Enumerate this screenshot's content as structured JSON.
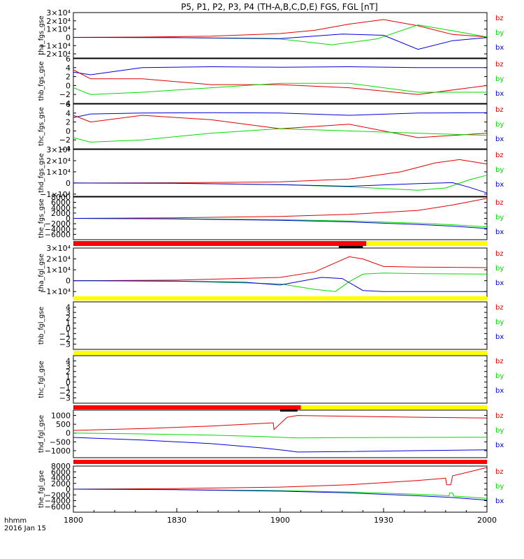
{
  "title": "P5, P1, P2, P3, P4 (TH-A,B,C,D,E) FGS, FGL [nT]",
  "footer": {
    "line1": "hhmm",
    "line2": "2016 Jan 15"
  },
  "colors": {
    "bz": "#e00000",
    "by": "#00dd00",
    "bx": "#0000dd",
    "bar_red": "#ff0000",
    "bar_yellow": "#ffff00",
    "bar_black": "#000000"
  },
  "chart_data": {
    "type": "line",
    "x_axis": {
      "ticks": [
        "1800",
        "1830",
        "1900",
        "1930",
        "2000"
      ],
      "range_minutes": [
        0,
        120
      ]
    },
    "panels": [
      {
        "ylabel": "tha_fgs_gse",
        "ylim": [
          -25000,
          30000
        ],
        "yticks": [
          {
            "v": 30000,
            "label": "3×10⁴"
          },
          {
            "v": 20000,
            "label": "2×10⁴"
          },
          {
            "v": 10000,
            "label": "1×10⁴"
          },
          {
            "v": 0,
            "label": "0"
          },
          {
            "v": -10000,
            "label": "−1×10⁴"
          },
          {
            "v": -20000,
            "label": "−2×10⁴"
          }
        ],
        "legend": [
          "bz",
          "by",
          "bx"
        ],
        "series": [
          {
            "name": "bz",
            "x": [
              0,
              20,
              40,
              60,
              70,
              80,
              90,
              100,
              110,
              120
            ],
            "y": [
              0,
              400,
              1500,
              4600,
              8500,
              16000,
              21500,
              14000,
              3500,
              500
            ]
          },
          {
            "name": "by",
            "x": [
              0,
              30,
              60,
              75,
              88,
              100,
              110,
              120
            ],
            "y": [
              0,
              -300,
              -2000,
              -9000,
              -2000,
              15000,
              8000,
              500
            ]
          },
          {
            "name": "bx",
            "x": [
              0,
              30,
              60,
              78,
              90,
              100,
              110,
              120
            ],
            "y": [
              0,
              -400,
              -1500,
              4000,
              2500,
              -14500,
              -4000,
              -300
            ]
          }
        ]
      },
      {
        "ylabel": "thb_fgs_gse",
        "ylim": [
          -4,
          6
        ],
        "yticks": [
          {
            "v": 6,
            "label": "6"
          },
          {
            "v": 4,
            "label": "4"
          },
          {
            "v": 2,
            "label": "2"
          },
          {
            "v": 0,
            "label": "0"
          },
          {
            "v": -2,
            "label": "−2"
          },
          {
            "v": -4,
            "label": "−4"
          }
        ],
        "legend": [
          "bz",
          "by",
          "bx"
        ],
        "series": [
          {
            "name": "bx",
            "x": [
              0,
              5,
              20,
              40,
              60,
              80,
              100,
              120
            ],
            "y": [
              3.0,
              2.4,
              4.0,
              4.2,
              4.1,
              4.2,
              4.0,
              4.0
            ]
          },
          {
            "name": "bz",
            "x": [
              0,
              5,
              20,
              40,
              60,
              80,
              100,
              120
            ],
            "y": [
              3.5,
              1.5,
              1.5,
              0.2,
              0.2,
              -0.5,
              -2.0,
              0.0
            ]
          },
          {
            "name": "by",
            "x": [
              0,
              5,
              20,
              40,
              60,
              80,
              100,
              120
            ],
            "y": [
              -0.5,
              -2.0,
              -1.5,
              -0.5,
              0.5,
              0.5,
              -1.5,
              -1.5
            ]
          }
        ]
      },
      {
        "ylabel": "thc_fgs_gse",
        "ylim": [
          -4,
          6
        ],
        "yticks": [
          {
            "v": 6,
            "label": "6"
          },
          {
            "v": 4,
            "label": "4"
          },
          {
            "v": 2,
            "label": "2"
          },
          {
            "v": 0,
            "label": "0"
          },
          {
            "v": -2,
            "label": "−2"
          },
          {
            "v": -4,
            "label": "−4"
          }
        ],
        "legend": [
          "bz",
          "by",
          "bx"
        ],
        "series": [
          {
            "name": "bx",
            "x": [
              0,
              5,
              20,
              40,
              60,
              80,
              100,
              120
            ],
            "y": [
              3.0,
              3.8,
              4.0,
              4.1,
              4.0,
              3.5,
              4.0,
              4.1
            ]
          },
          {
            "name": "bz",
            "x": [
              0,
              5,
              20,
              40,
              60,
              80,
              100,
              120
            ],
            "y": [
              3.5,
              2.0,
              3.5,
              2.5,
              0.5,
              1.5,
              -1.5,
              -0.5
            ]
          },
          {
            "name": "by",
            "x": [
              0,
              5,
              20,
              40,
              60,
              80,
              100,
              120
            ],
            "y": [
              -1.5,
              -2.5,
              -2.0,
              -0.5,
              0.5,
              0.0,
              -0.5,
              -1.0
            ]
          }
        ]
      },
      {
        "ylabel": "thd_fgs_gse",
        "ylim": [
          -12000,
          30000
        ],
        "yticks": [
          {
            "v": 30000,
            "label": "3×10⁴"
          },
          {
            "v": 20000,
            "label": "2×10⁴"
          },
          {
            "v": 10000,
            "label": "1×10⁴"
          },
          {
            "v": 0,
            "label": "0"
          },
          {
            "v": -10000,
            "label": "−1×10⁴"
          }
        ],
        "legend": [
          "bz",
          "by",
          "bx"
        ],
        "series": [
          {
            "name": "bz",
            "x": [
              0,
              30,
              60,
              80,
              95,
              105,
              112,
              120
            ],
            "y": [
              0,
              200,
              1000,
              3500,
              10000,
              18000,
              21000,
              17000
            ]
          },
          {
            "name": "by",
            "x": [
              0,
              30,
              60,
              80,
              100,
              108,
              115,
              120
            ],
            "y": [
              0,
              -200,
              -1500,
              -3500,
              -6500,
              -4500,
              3000,
              7000
            ]
          },
          {
            "name": "bx",
            "x": [
              0,
              30,
              60,
              80,
              100,
              110,
              115,
              120
            ],
            "y": [
              0,
              -300,
              -1500,
              -3000,
              -500,
              300,
              -4000,
              -9000
            ]
          }
        ]
      },
      {
        "ylabel": "the_fgs_gse",
        "ylim": [
          -8000,
          8000
        ],
        "yticks": [
          {
            "v": 8000,
            "label": "8000"
          },
          {
            "v": 6000,
            "label": "6000"
          },
          {
            "v": 4000,
            "label": "4000"
          },
          {
            "v": 2000,
            "label": "2000"
          },
          {
            "v": 0,
            "label": "0"
          },
          {
            "v": -2000,
            "label": "−2000"
          },
          {
            "v": -4000,
            "label": "−4000"
          },
          {
            "v": -6000,
            "label": "−6000"
          }
        ],
        "legend": [
          "bz",
          "by",
          "bx"
        ],
        "series": [
          {
            "name": "bz",
            "x": [
              0,
              30,
              60,
              80,
              100,
              110,
              120
            ],
            "y": [
              0,
              200,
              700,
              1500,
              3000,
              5000,
              7500
            ]
          },
          {
            "name": "by",
            "x": [
              0,
              30,
              60,
              80,
              100,
              110,
              120
            ],
            "y": [
              0,
              -150,
              -500,
              -1000,
              -1800,
              -2400,
              -3200
            ]
          },
          {
            "name": "bx",
            "x": [
              0,
              30,
              60,
              80,
              100,
              110,
              120
            ],
            "y": [
              0,
              -200,
              -700,
              -1300,
              -2300,
              -2900,
              -3800
            ]
          }
        ]
      },
      {
        "ylabel": "tha_fgl_gse",
        "ylim": [
          -15000,
          30000
        ],
        "yticks": [
          {
            "v": 30000,
            "label": "3×10⁴"
          },
          {
            "v": 20000,
            "label": "2×10⁴"
          },
          {
            "v": 10000,
            "label": "1×10⁴"
          },
          {
            "v": 0,
            "label": "0"
          },
          {
            "v": -10000,
            "label": "−1×10⁴"
          }
        ],
        "legend": [
          "bz",
          "by",
          "bx"
        ],
        "series": [
          {
            "name": "bz",
            "x": [
              0,
              30,
              60,
              70,
              75,
              80,
              84,
              90,
              100,
              120
            ],
            "y": [
              0,
              500,
              3000,
              8000,
              15000,
              22000,
              20000,
              13000,
              12500,
              12000
            ]
          },
          {
            "name": "by",
            "x": [
              0,
              30,
              60,
              70,
              76,
              80,
              84,
              90,
              100,
              120
            ],
            "y": [
              0,
              -500,
              -3000,
              -8000,
              -10000,
              -1000,
              6000,
              7000,
              6500,
              6000
            ]
          },
          {
            "name": "bx",
            "x": [
              0,
              30,
              50,
              60,
              72,
              78,
              84,
              90,
              100,
              120
            ],
            "y": [
              0,
              -500,
              -1500,
              -4000,
              3000,
              2000,
              -9000,
              -10000,
              -10000,
              -10000
            ]
          }
        ]
      },
      {
        "ylabel": "thb_fgl_gse",
        "ylim": [
          -4,
          5
        ],
        "yticks": [
          {
            "v": 4,
            "label": "4"
          },
          {
            "v": 3,
            "label": "3"
          },
          {
            "v": 2,
            "label": "2"
          },
          {
            "v": 1,
            "label": "1"
          },
          {
            "v": 0,
            "label": "0"
          },
          {
            "v": -1,
            "label": "−1"
          },
          {
            "v": -2,
            "label": "−2"
          },
          {
            "v": -3,
            "label": "−3"
          }
        ],
        "legend": [
          "bz",
          "by",
          "bx"
        ],
        "series": []
      },
      {
        "ylabel": "thc_fgl_gse",
        "ylim": [
          -4,
          5
        ],
        "yticks": [
          {
            "v": 4,
            "label": "4"
          },
          {
            "v": 3,
            "label": "3"
          },
          {
            "v": 2,
            "label": "2"
          },
          {
            "v": 1,
            "label": "1"
          },
          {
            "v": 0,
            "label": "0"
          },
          {
            "v": -1,
            "label": "−1"
          },
          {
            "v": -2,
            "label": "−2"
          },
          {
            "v": -3,
            "label": "−3"
          }
        ],
        "legend": [
          "bz",
          "by",
          "bx"
        ],
        "series": []
      },
      {
        "ylabel": "thd_fgl_gse",
        "ylim": [
          -1400,
          1300
        ],
        "yticks": [
          {
            "v": 1000,
            "label": "1000"
          },
          {
            "v": 500,
            "label": "500"
          },
          {
            "v": 0,
            "label": "0"
          },
          {
            "v": -500,
            "label": "−500"
          },
          {
            "v": -1000,
            "label": "−1000"
          }
        ],
        "legend": [
          "bz",
          "by",
          "bx"
        ],
        "series": [
          {
            "name": "bz",
            "x": [
              0,
              20,
              40,
              55,
              58,
              58.2,
              62,
              65,
              80,
              100,
              120
            ],
            "y": [
              150,
              250,
              400,
              550,
              580,
              200,
              900,
              1000,
              950,
              900,
              850
            ]
          },
          {
            "name": "by",
            "x": [
              0,
              20,
              40,
              55,
              62,
              65,
              80,
              100,
              120
            ],
            "y": [
              0,
              -50,
              -120,
              -200,
              -260,
              -280,
              -260,
              -250,
              -240
            ]
          },
          {
            "name": "bx",
            "x": [
              0,
              20,
              40,
              55,
              62,
              65,
              80,
              100,
              120
            ],
            "y": [
              -250,
              -400,
              -600,
              -850,
              -1000,
              -1080,
              -1050,
              -1000,
              -950
            ]
          }
        ]
      },
      {
        "ylabel": "the_fgl_gse",
        "ylim": [
          -8000,
          8000
        ],
        "yticks": [
          {
            "v": 8000,
            "label": "8000"
          },
          {
            "v": 6000,
            "label": "6000"
          },
          {
            "v": 4000,
            "label": "4000"
          },
          {
            "v": 2000,
            "label": "2000"
          },
          {
            "v": 0,
            "label": "0"
          },
          {
            "v": -2000,
            "label": "−2000"
          },
          {
            "v": -4000,
            "label": "−4000"
          },
          {
            "v": -6000,
            "label": "−6000"
          }
        ],
        "legend": [
          "bz",
          "by",
          "bx"
        ],
        "series": [
          {
            "name": "bz",
            "x": [
              0,
              30,
              60,
              80,
              100,
              108,
              108.3,
              109.5,
              110,
              120
            ],
            "y": [
              0,
              200,
              700,
              1500,
              3000,
              3800,
              1500,
              1500,
              4600,
              7500
            ]
          },
          {
            "name": "by",
            "x": [
              0,
              30,
              60,
              80,
              100,
              109,
              109.2,
              110,
              110.3,
              120
            ],
            "y": [
              0,
              -150,
              -500,
              -1000,
              -1800,
              -2300,
              -1300,
              -1300,
              -2400,
              -3200
            ]
          },
          {
            "name": "bx",
            "x": [
              0,
              30,
              60,
              80,
              100,
              110,
              120
            ],
            "y": [
              0,
              -200,
              -700,
              -1300,
              -2300,
              -2900,
              -3800
            ]
          }
        ]
      }
    ],
    "status_bars": [
      {
        "segments": [
          {
            "from": 0,
            "to": 85,
            "color": "red"
          },
          {
            "from": 85,
            "to": 120,
            "color": "yellow"
          }
        ],
        "marks": [
          {
            "from": 77,
            "to": 84
          }
        ]
      },
      {
        "segments": [
          {
            "from": 0,
            "to": 120,
            "color": "yellow"
          }
        ],
        "marks": []
      },
      {
        "segments": [
          {
            "from": 0,
            "to": 120,
            "color": "yellow"
          }
        ],
        "marks": []
      },
      {
        "segments": [
          {
            "from": 0,
            "to": 66,
            "color": "red"
          },
          {
            "from": 66,
            "to": 120,
            "color": "yellow"
          }
        ],
        "marks": [
          {
            "from": 60,
            "to": 65
          }
        ]
      },
      {
        "segments": [
          {
            "from": 0,
            "to": 120,
            "color": "red"
          }
        ],
        "marks": []
      }
    ]
  }
}
